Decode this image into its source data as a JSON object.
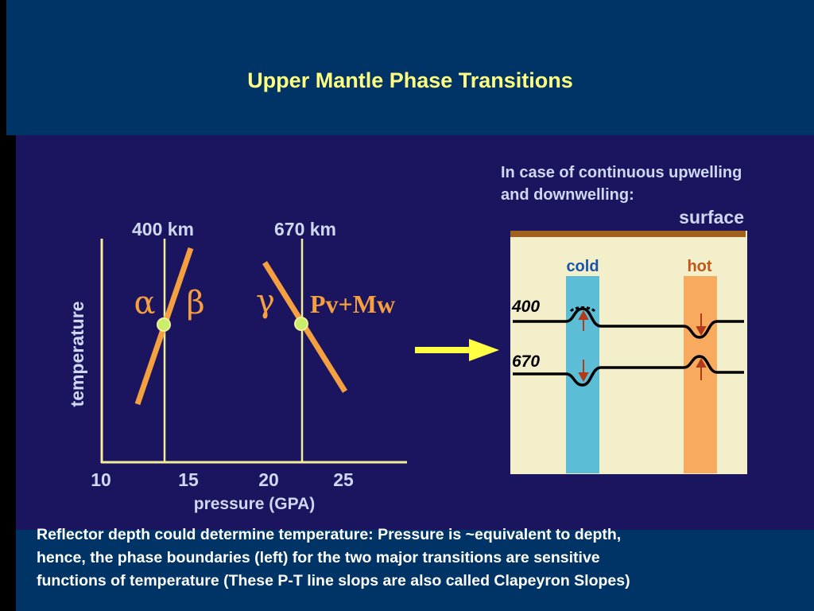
{
  "title": "Upper Mantle Phase Transitions",
  "left_plot": {
    "ylabel": "temperature",
    "xlabel": "pressure (GPA)",
    "xticks": [
      "10",
      "15",
      "20",
      "25"
    ],
    "depth_labels": [
      "400 km",
      "670 km"
    ],
    "phases": {
      "alpha": "α",
      "beta": "β",
      "gamma": "γ",
      "pv_mw": "Pv+Mw"
    }
  },
  "right_panel": {
    "heading_line1": "In case of continuous upwelling",
    "heading_line2": "and downwelling:",
    "surface_label": "surface",
    "cold_label": "cold",
    "hot_label": "hot",
    "depth_400": "400",
    "depth_670": "670"
  },
  "caption_lines": [
    "Reflector depth could determine temperature:  Pressure is ~equivalent to depth,",
    "hence, the phase boundaries (left) for the two major transitions are sensitive",
    "functions of temperature (These P-T line slops are also called Clapeyron Slopes)"
  ],
  "colors": {
    "background": "#1b145e",
    "header": "#003466",
    "title_text": "#ffff80",
    "clapeyron_line": "#f5a040",
    "axis_line": "#f2ee9a",
    "marker": "#c9ee6a",
    "panel": "#f2efca",
    "cold": "#5bbdd6",
    "hot": "#f8aa5e",
    "surface": "#a0611e",
    "arrow": "#ffff44",
    "label_blue": "#cfd8f0"
  }
}
